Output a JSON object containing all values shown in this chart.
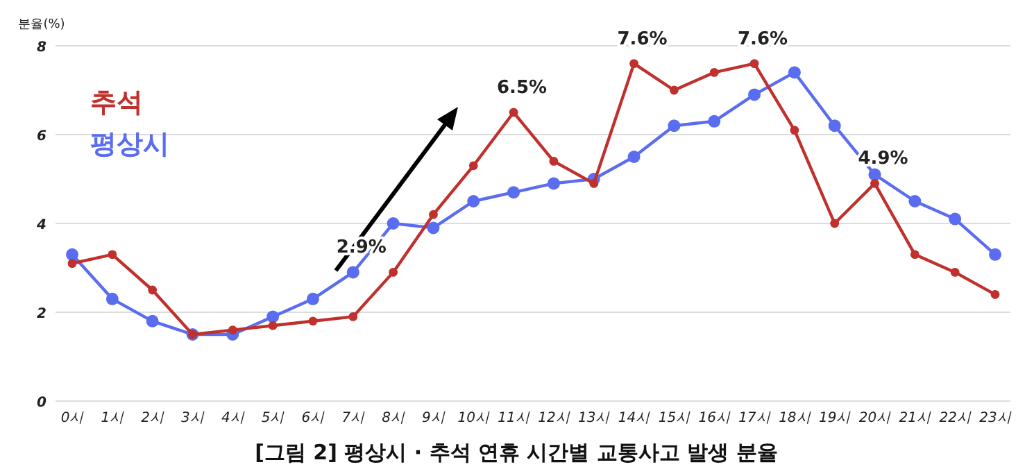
{
  "chart_data": {
    "type": "line",
    "title": "[그림  2]  평상시 · 추석 연휴 시간별 교통사고 발생 분율",
    "ylabel": "분율(%)",
    "categories": [
      "0시",
      "1시",
      "2시",
      "3시",
      "4시",
      "5시",
      "6시",
      "7시",
      "8시",
      "9시",
      "10시",
      "11시",
      "12시",
      "13시",
      "14시",
      "15시",
      "16시",
      "17시",
      "18시",
      "19시",
      "20시",
      "21시",
      "22시",
      "23시"
    ],
    "series": [
      {
        "name": "추석",
        "color": "#c0302c",
        "values": [
          3.1,
          3.3,
          2.5,
          1.5,
          1.6,
          1.7,
          1.8,
          1.9,
          2.9,
          4.2,
          5.3,
          6.5,
          5.4,
          4.9,
          7.6,
          7.0,
          7.4,
          7.6,
          6.1,
          4.0,
          4.9,
          3.3,
          2.9,
          2.4
        ]
      },
      {
        "name": "평상시",
        "color": "#5a6cf0",
        "values": [
          3.3,
          2.3,
          1.8,
          1.5,
          1.5,
          1.9,
          2.3,
          2.9,
          4.0,
          3.9,
          4.5,
          4.7,
          4.9,
          5.0,
          5.5,
          6.2,
          6.3,
          6.9,
          7.4,
          6.2,
          5.1,
          4.5,
          4.1,
          3.3
        ]
      }
    ],
    "ylim": [
      0,
      8
    ],
    "yticks": [
      0,
      2,
      4,
      6,
      8
    ],
    "grid": "y",
    "legend": "top left",
    "marker": "circle",
    "line_style": "solid",
    "annotations": [
      {
        "text": "2.9%",
        "x": "7시",
        "y": 2.9
      },
      {
        "text": "6.5%",
        "x": "11시",
        "y": 6.5
      },
      {
        "text": "7.6%",
        "x": "14시",
        "y": 7.6
      },
      {
        "text": "7.6%",
        "x": "17시",
        "y": 7.6
      },
      {
        "text": "4.9%",
        "x": "20시",
        "y": 4.9
      }
    ]
  }
}
